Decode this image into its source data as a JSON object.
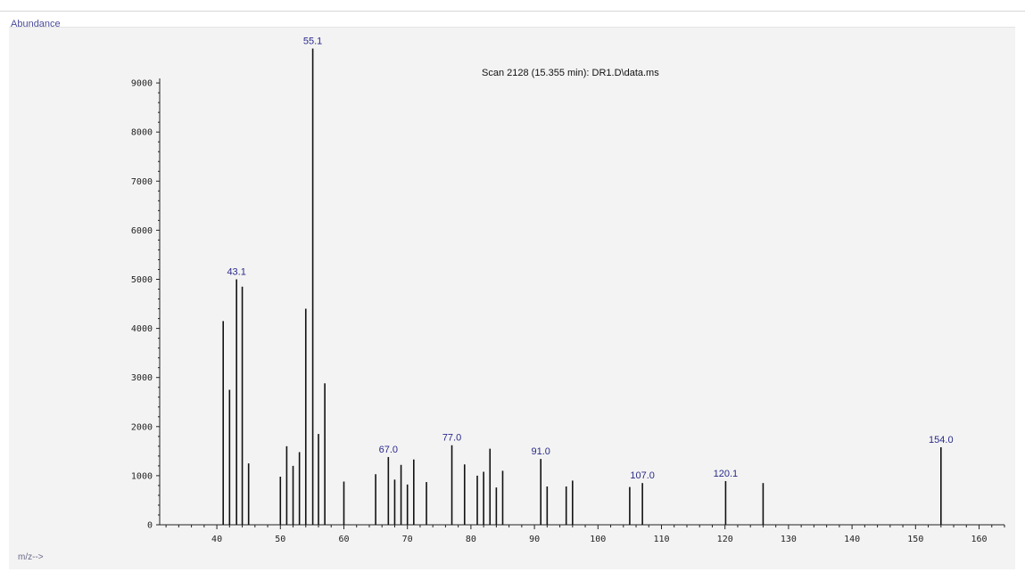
{
  "chart_data": {
    "type": "bar",
    "title": "Scan 2128 (15.355 min): DR1.D\\data.ms",
    "ylabel": "Abundance",
    "xlabel": "m/z-->",
    "xlim": [
      31,
      164
    ],
    "ylim": [
      0,
      10000
    ],
    "x_ticks": [
      40,
      50,
      60,
      70,
      80,
      90,
      100,
      110,
      120,
      130,
      140,
      150,
      160
    ],
    "y_ticks": [
      0,
      1000,
      2000,
      3000,
      4000,
      5000,
      6000,
      7000,
      8000,
      9000
    ],
    "peaks": [
      {
        "mz": 41,
        "abundance": 4150
      },
      {
        "mz": 42,
        "abundance": 2750
      },
      {
        "mz": 43.1,
        "abundance": 5000,
        "label": "43.1"
      },
      {
        "mz": 44,
        "abundance": 4850
      },
      {
        "mz": 45,
        "abundance": 1250
      },
      {
        "mz": 50,
        "abundance": 980
      },
      {
        "mz": 51,
        "abundance": 1600
      },
      {
        "mz": 52,
        "abundance": 1200
      },
      {
        "mz": 53,
        "abundance": 1480
      },
      {
        "mz": 54,
        "abundance": 4400
      },
      {
        "mz": 55.1,
        "abundance": 9700,
        "label": "55.1"
      },
      {
        "mz": 56,
        "abundance": 1850
      },
      {
        "mz": 57,
        "abundance": 2880
      },
      {
        "mz": 60,
        "abundance": 880
      },
      {
        "mz": 65,
        "abundance": 1030
      },
      {
        "mz": 67,
        "abundance": 1380,
        "label": "67.0"
      },
      {
        "mz": 68,
        "abundance": 920
      },
      {
        "mz": 69,
        "abundance": 1220
      },
      {
        "mz": 70,
        "abundance": 820
      },
      {
        "mz": 71,
        "abundance": 1330
      },
      {
        "mz": 73,
        "abundance": 870
      },
      {
        "mz": 77,
        "abundance": 1620,
        "label": "77.0"
      },
      {
        "mz": 79,
        "abundance": 1230
      },
      {
        "mz": 81,
        "abundance": 1000
      },
      {
        "mz": 82,
        "abundance": 1080
      },
      {
        "mz": 83,
        "abundance": 1550
      },
      {
        "mz": 84,
        "abundance": 760
      },
      {
        "mz": 85,
        "abundance": 1100
      },
      {
        "mz": 91,
        "abundance": 1340,
        "label": "91.0"
      },
      {
        "mz": 92,
        "abundance": 780
      },
      {
        "mz": 95,
        "abundance": 780
      },
      {
        "mz": 96,
        "abundance": 900
      },
      {
        "mz": 105,
        "abundance": 770
      },
      {
        "mz": 107,
        "abundance": 850,
        "label": "107.0"
      },
      {
        "mz": 120.1,
        "abundance": 890,
        "label": "120.1"
      },
      {
        "mz": 126,
        "abundance": 850
      },
      {
        "mz": 154,
        "abundance": 1580,
        "label": "154.0"
      }
    ]
  },
  "colors": {
    "peak": "#111111",
    "axis": "#222222",
    "peak_label": "#2a2a8a",
    "panel_background": "#f3f3f3"
  }
}
